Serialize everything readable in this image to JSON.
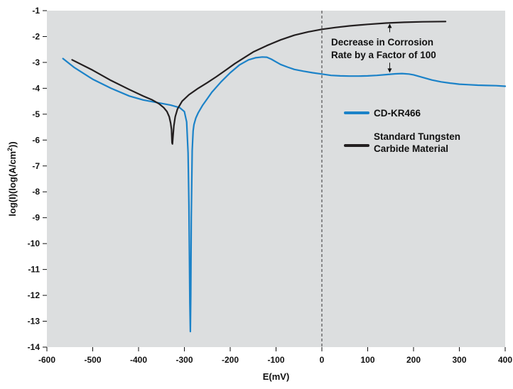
{
  "chart_data": {
    "type": "line",
    "xlabel": "E(mV)",
    "ylabel_main": "log(I)(log(A/cm",
    "ylabel_sup": "2",
    "ylabel_end": "))",
    "xlim": [
      -600,
      400
    ],
    "ylim": [
      -14,
      -1
    ],
    "xticks": [
      -600,
      -500,
      -400,
      -300,
      -200,
      -100,
      0,
      100,
      200,
      300,
      400
    ],
    "yticks": [
      -1,
      -2,
      -3,
      -4,
      -5,
      -6,
      -7,
      -8,
      -9,
      -10,
      -11,
      -12,
      -13,
      -14
    ],
    "grid": false,
    "background": "#dcdedf",
    "reference_line_x": 0,
    "series": [
      {
        "name": "CD-KR466",
        "color": "#1b82c8",
        "x": [
          -565,
          -540,
          -500,
          -460,
          -420,
          -390,
          -360,
          -330,
          -310,
          -300,
          -295,
          -292,
          -290,
          -289,
          -288,
          -287,
          -286,
          -285,
          -283,
          -281,
          -279,
          -275,
          -270,
          -260,
          -250,
          -240,
          -220,
          -200,
          -180,
          -160,
          -145,
          -130,
          -120,
          -110,
          -100,
          -90,
          -75,
          -60,
          -40,
          -20,
          0,
          20,
          40,
          60,
          80,
          100,
          120,
          140,
          160,
          175,
          190,
          200,
          220,
          240,
          260,
          280,
          300,
          320,
          340,
          360,
          380,
          400
        ],
        "y": [
          -2.85,
          -3.2,
          -3.65,
          -4.0,
          -4.3,
          -4.45,
          -4.55,
          -4.65,
          -4.75,
          -4.9,
          -5.3,
          -6.5,
          -8.5,
          -10.5,
          -12.3,
          -13.4,
          -12.0,
          -9.0,
          -6.4,
          -5.65,
          -5.4,
          -5.15,
          -4.95,
          -4.65,
          -4.4,
          -4.15,
          -3.75,
          -3.4,
          -3.1,
          -2.9,
          -2.82,
          -2.79,
          -2.8,
          -2.88,
          -2.98,
          -3.08,
          -3.18,
          -3.27,
          -3.34,
          -3.4,
          -3.45,
          -3.5,
          -3.52,
          -3.53,
          -3.53,
          -3.52,
          -3.5,
          -3.47,
          -3.44,
          -3.43,
          -3.45,
          -3.48,
          -3.58,
          -3.68,
          -3.75,
          -3.8,
          -3.84,
          -3.86,
          -3.88,
          -3.89,
          -3.9,
          -3.92
        ]
      },
      {
        "name": "Standard Tungsten Carbide Material",
        "color": "#231f20",
        "x": [
          -545,
          -500,
          -460,
          -420,
          -390,
          -370,
          -355,
          -345,
          -338,
          -333,
          -330,
          -328,
          -327,
          -326,
          -325,
          -323,
          -320,
          -315,
          -305,
          -290,
          -270,
          -250,
          -230,
          -210,
          -190,
          -170,
          -150,
          -120,
          -90,
          -60,
          -30,
          0,
          30,
          60,
          100,
          140,
          180,
          220,
          270
        ],
        "y": [
          -2.9,
          -3.3,
          -3.7,
          -4.05,
          -4.3,
          -4.45,
          -4.6,
          -4.75,
          -4.9,
          -5.1,
          -5.35,
          -5.6,
          -6.1,
          -6.15,
          -5.9,
          -5.45,
          -5.1,
          -4.8,
          -4.5,
          -4.25,
          -4.0,
          -3.78,
          -3.55,
          -3.3,
          -3.05,
          -2.82,
          -2.6,
          -2.35,
          -2.13,
          -1.95,
          -1.82,
          -1.72,
          -1.65,
          -1.59,
          -1.53,
          -1.48,
          -1.45,
          -1.43,
          -1.42
        ]
      }
    ],
    "legend": [
      {
        "label": "CD-KR466",
        "color": "#1b82c8"
      },
      {
        "label_lines": [
          "Standard Tungsten",
          "Carbide Material"
        ],
        "color": "#231f20"
      }
    ],
    "annotation": {
      "lines": [
        "Decrease in Corrosion",
        "Rate by a Factor of 100"
      ],
      "arrow_x": 148,
      "arrow_top_y": -1.45,
      "arrow_bottom_y": -3.45
    }
  }
}
